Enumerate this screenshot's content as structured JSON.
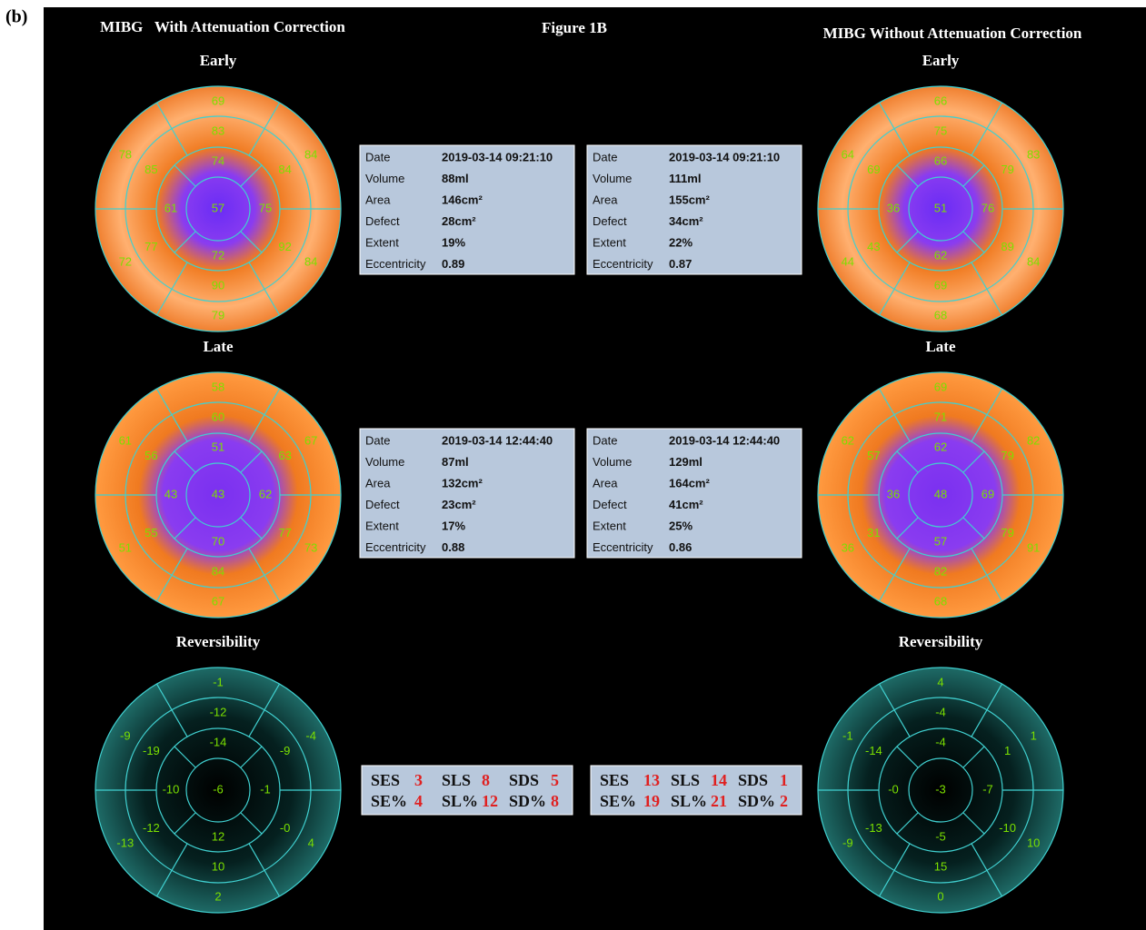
{
  "figure_label": "(b)",
  "figure_title": "Figure 1B",
  "columns": [
    {
      "title": "MIBG   With Attenuation Correction",
      "maps": [
        {
          "label": "Early",
          "center": "57",
          "inner": [
            "74",
            "61",
            "72",
            "75"
          ],
          "middle": [
            "83",
            "85",
            "77",
            "90",
            "92",
            "84"
          ],
          "outer": [
            "69",
            "78",
            "72",
            "79",
            "84",
            "84"
          ]
        },
        {
          "label": "Late",
          "center": "43",
          "inner": [
            "51",
            "43",
            "70",
            "62"
          ],
          "middle": [
            "60",
            "56",
            "55",
            "84",
            "77",
            "63"
          ],
          "outer": [
            "58",
            "61",
            "51",
            "67",
            "73",
            "67"
          ]
        },
        {
          "label": "Reversibility",
          "center": "-6",
          "inner": [
            "-14",
            "-10",
            "12",
            "-1"
          ],
          "middle": [
            "-12",
            "-19",
            "-12",
            "10",
            "-0",
            "-9"
          ],
          "outer": [
            "-1",
            "-9",
            "-13",
            "2",
            "4",
            "-4"
          ]
        }
      ],
      "info": [
        [
          [
            "Date",
            "2019-03-14 09:21:10"
          ],
          [
            "Volume",
            "88ml"
          ],
          [
            "Area",
            "146cm²"
          ],
          [
            "Defect",
            "28cm²"
          ],
          [
            "Extent",
            "19%"
          ],
          [
            "Eccentricity",
            "0.89"
          ]
        ],
        [
          [
            "Date",
            "2019-03-14 12:44:40"
          ],
          [
            "Volume",
            "87ml"
          ],
          [
            "Area",
            "132cm²"
          ],
          [
            "Defect",
            "23cm²"
          ],
          [
            "Extent",
            "17%"
          ],
          [
            "Eccentricity",
            "0.88"
          ]
        ]
      ],
      "scores": [
        [
          "SES",
          "3",
          "SLS",
          "8",
          "SDS",
          "5"
        ],
        [
          "SE%",
          "4",
          "SL%",
          "12",
          "SD%",
          "8"
        ]
      ]
    },
    {
      "title": "MIBG Without Attenuation Correction",
      "maps": [
        {
          "label": "Early",
          "center": "51",
          "inner": [
            "66",
            "36",
            "62",
            "76"
          ],
          "middle": [
            "75",
            "69",
            "43",
            "69",
            "89",
            "79"
          ],
          "outer": [
            "66",
            "64",
            "44",
            "68",
            "84",
            "83"
          ]
        },
        {
          "label": "Late",
          "center": "48",
          "inner": [
            "62",
            "36",
            "57",
            "69"
          ],
          "middle": [
            "71",
            "57",
            "31",
            "82",
            "79",
            "79"
          ],
          "outer": [
            "69",
            "62",
            "36",
            "68",
            "91",
            "82"
          ]
        },
        {
          "label": "Reversibility",
          "center": "-3",
          "inner": [
            "-4",
            "-0",
            "-5",
            "-7"
          ],
          "middle": [
            "-4",
            "-14",
            "-13",
            "15",
            "-10",
            "1"
          ],
          "outer": [
            "4",
            "-1",
            "-9",
            "0",
            "10",
            "1"
          ]
        }
      ],
      "info": [
        [
          [
            "Date",
            "2019-03-14 09:21:10"
          ],
          [
            "Volume",
            "111ml"
          ],
          [
            "Area",
            "155cm²"
          ],
          [
            "Defect",
            "34cm²"
          ],
          [
            "Extent",
            "22%"
          ],
          [
            "Eccentricity",
            "0.87"
          ]
        ],
        [
          [
            "Date",
            "2019-03-14 12:44:40"
          ],
          [
            "Volume",
            "129ml"
          ],
          [
            "Area",
            "164cm²"
          ],
          [
            "Defect",
            "41cm²"
          ],
          [
            "Extent",
            "25%"
          ],
          [
            "Eccentricity",
            "0.86"
          ]
        ]
      ],
      "scores": [
        [
          "SES",
          "13",
          "SLS",
          "14",
          "SDS",
          "1"
        ],
        [
          "SE%",
          "19",
          "SL%",
          "21",
          "SD%",
          "2"
        ]
      ]
    }
  ]
}
